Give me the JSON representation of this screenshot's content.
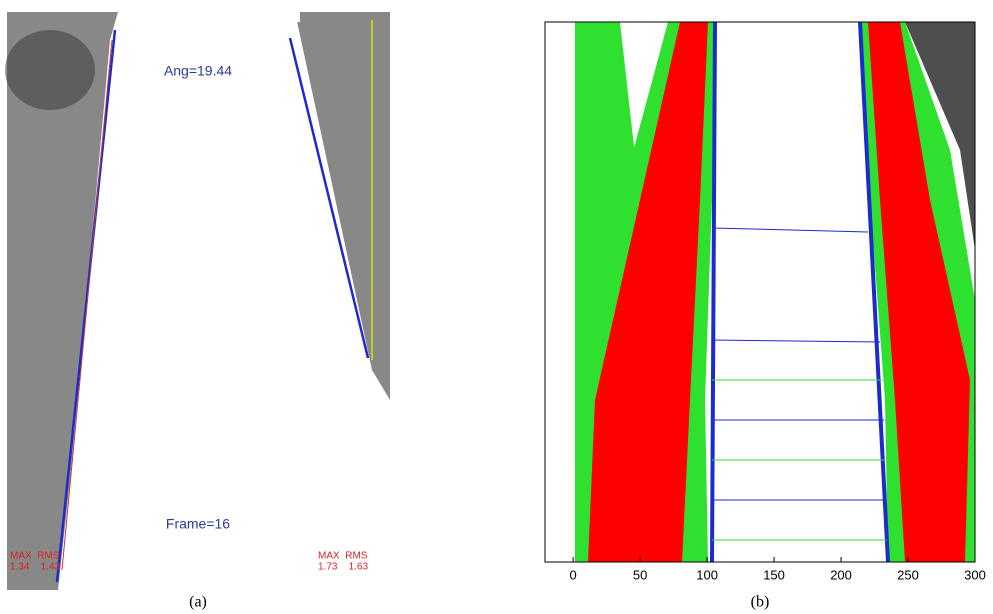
{
  "panel_a": {
    "angle_label": "Ang=19.44",
    "frame_label": "Frame=16",
    "left_stats": {
      "header": "MAX  RMS",
      "values": "1.34    1.43"
    },
    "right_stats": {
      "header": "MAX  RMS",
      "values": "1.73    1.63"
    },
    "caption": "(a)"
  },
  "panel_b": {
    "xlim": [
      -21,
      300
    ],
    "xticks": [
      0,
      50,
      100,
      150,
      200,
      250,
      300
    ],
    "caption": "(b)"
  }
}
